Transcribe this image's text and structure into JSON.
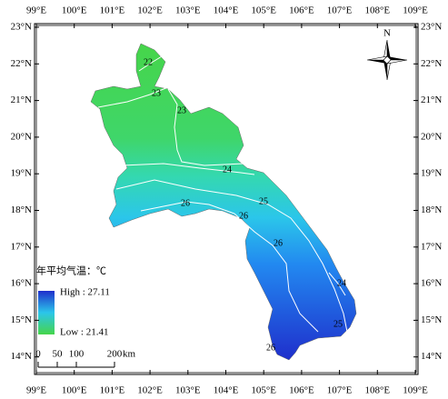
{
  "map_data": {
    "lon_ticks": [
      {
        "value": 99,
        "label": "99°E"
      },
      {
        "value": 100,
        "label": "100°E"
      },
      {
        "value": 101,
        "label": "101°E"
      },
      {
        "value": 102,
        "label": "102°E"
      },
      {
        "value": 103,
        "label": "103°E"
      },
      {
        "value": 104,
        "label": "104°E"
      },
      {
        "value": 105,
        "label": "105°E"
      },
      {
        "value": 106,
        "label": "106°E"
      },
      {
        "value": 107,
        "label": "107°E"
      },
      {
        "value": 108,
        "label": "108°E"
      },
      {
        "value": 109,
        "label": "109°E"
      }
    ],
    "lat_ticks": [
      {
        "value": 23,
        "label": "23°N"
      },
      {
        "value": 22,
        "label": "22°N"
      },
      {
        "value": 21,
        "label": "21°N"
      },
      {
        "value": 20,
        "label": "20°N"
      },
      {
        "value": 19,
        "label": "19°N"
      },
      {
        "value": 18,
        "label": "18°N"
      },
      {
        "value": 17,
        "label": "17°N"
      },
      {
        "value": 16,
        "label": "16°N"
      },
      {
        "value": 15,
        "label": "15°N"
      },
      {
        "value": 14,
        "label": "14°N"
      }
    ],
    "contours": [
      {
        "label": "22"
      },
      {
        "label": "23"
      },
      {
        "label": "23"
      },
      {
        "label": "24"
      },
      {
        "label": "25"
      },
      {
        "label": "26"
      },
      {
        "label": "26"
      },
      {
        "label": "26"
      },
      {
        "label": "24"
      },
      {
        "label": "25"
      },
      {
        "label": "26"
      }
    ],
    "legend": {
      "title": "年平均气温：℃",
      "high": "High : 27.11",
      "low": "Low : 21.41"
    },
    "scale_bar": {
      "ticks": [
        0,
        50,
        100,
        200
      ],
      "unit": "km"
    },
    "north": "N"
  }
}
